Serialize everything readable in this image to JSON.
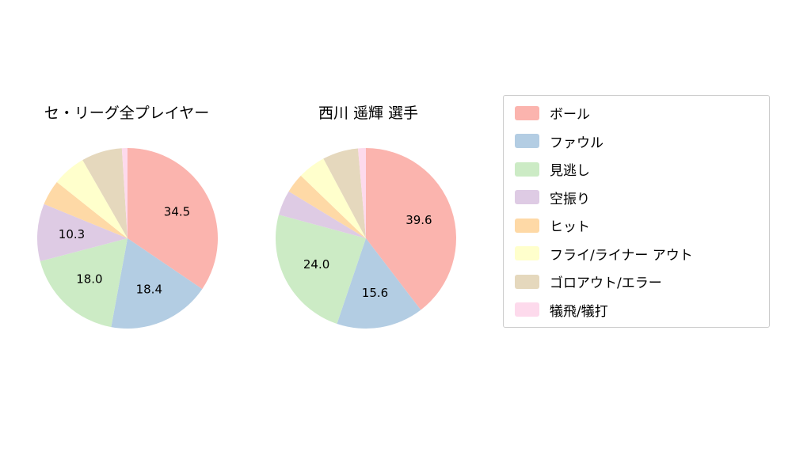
{
  "figure": {
    "background_color": "#ffffff",
    "text_color": "#000000",
    "legend_border_color": "#cccccc"
  },
  "chart_data": [
    {
      "type": "pie",
      "title": "セ・リーグ全プレイヤー",
      "start_angle_deg": 0,
      "direction": "clockwise",
      "categories": [
        "ボール",
        "ファウル",
        "見逃し",
        "空振り",
        "ヒット",
        "フライ/ライナー アウト",
        "ゴロアウト/エラー",
        "犠飛/犠打"
      ],
      "values": [
        34.5,
        18.4,
        18.0,
        10.3,
        4.5,
        6.0,
        7.3,
        1.0
      ],
      "value_labels": [
        "34.5",
        "18.4",
        "18.0",
        "10.3",
        "",
        "",
        "",
        ""
      ],
      "colors": [
        "#fbb4ae",
        "#b3cde3",
        "#ccebc5",
        "#decbe4",
        "#fed9a6",
        "#ffffcc",
        "#e5d8bd",
        "#fddaec"
      ]
    },
    {
      "type": "pie",
      "title": "西川 遥輝  選手",
      "start_angle_deg": 0,
      "direction": "clockwise",
      "categories": [
        "ボール",
        "ファウル",
        "見逃し",
        "空振り",
        "ヒット",
        "フライ/ライナー アウト",
        "ゴロアウト/エラー",
        "犠飛/犠打"
      ],
      "values": [
        39.6,
        15.6,
        24.0,
        4.5,
        3.5,
        5.0,
        6.4,
        1.4
      ],
      "value_labels": [
        "39.6",
        "15.6",
        "24.0",
        "",
        "",
        "",
        "",
        ""
      ],
      "colors": [
        "#fbb4ae",
        "#b3cde3",
        "#ccebc5",
        "#decbe4",
        "#fed9a6",
        "#ffffcc",
        "#e5d8bd",
        "#fddaec"
      ]
    }
  ],
  "legend": {
    "position": "right",
    "items": [
      {
        "label": "ボール",
        "color": "#fbb4ae"
      },
      {
        "label": "ファウル",
        "color": "#b3cde3"
      },
      {
        "label": "見逃し",
        "color": "#ccebc5"
      },
      {
        "label": "空振り",
        "color": "#decbe4"
      },
      {
        "label": "ヒット",
        "color": "#fed9a6"
      },
      {
        "label": "フライ/ライナー アウト",
        "color": "#ffffcc"
      },
      {
        "label": "ゴロアウト/エラー",
        "color": "#e5d8bd"
      },
      {
        "label": "犠飛/犠打",
        "color": "#fddaec"
      }
    ]
  }
}
